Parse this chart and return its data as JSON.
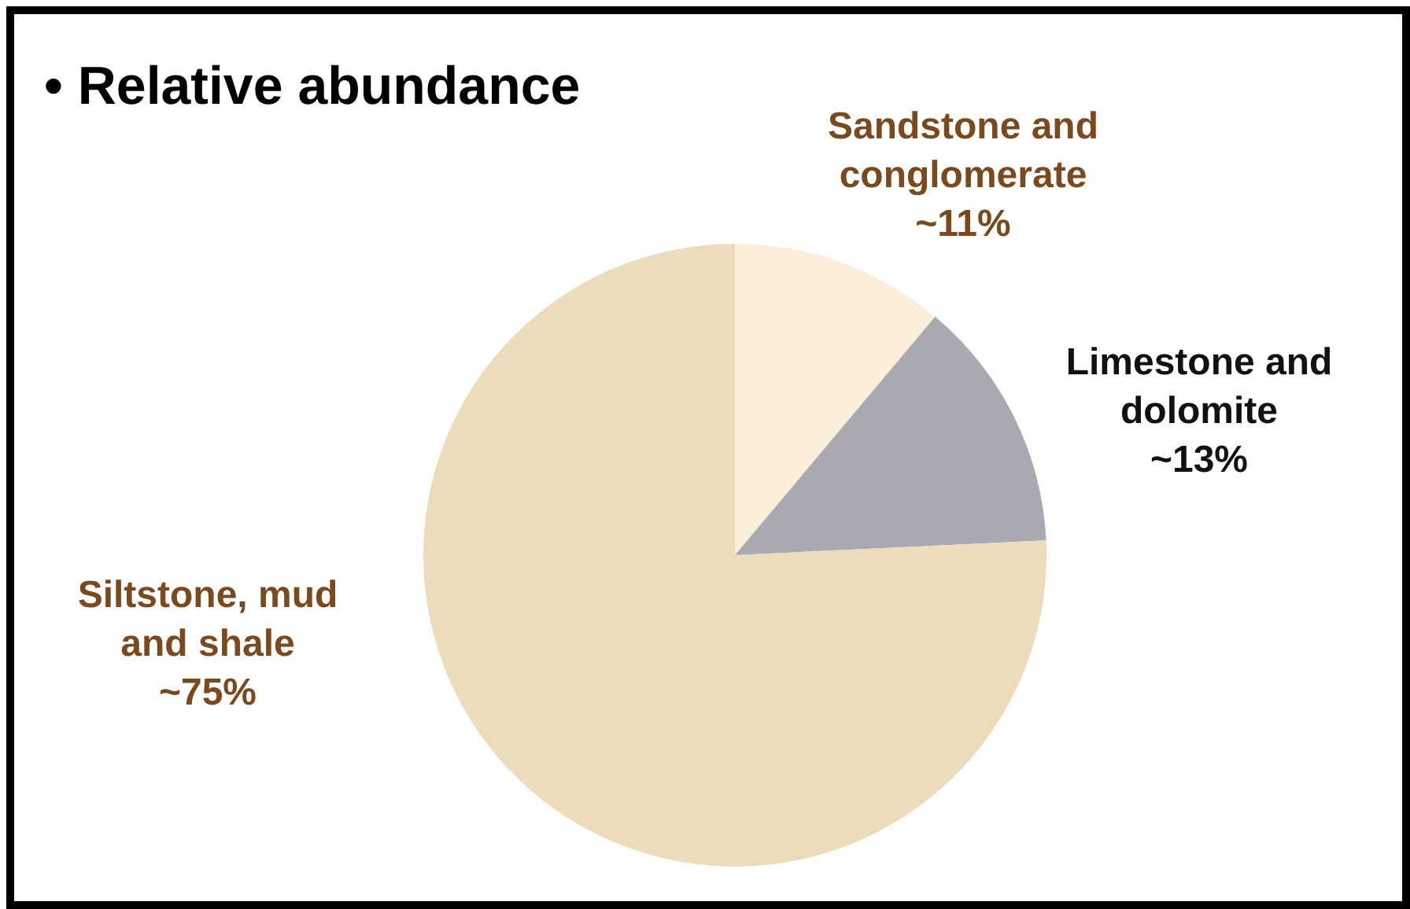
{
  "chart_data": {
    "type": "pie",
    "title": "• Relative abundance",
    "categories": [
      "Sandstone and conglomerate",
      "Limestone and dolomite",
      "Siltstone, mud and shale"
    ],
    "values": [
      11,
      13,
      75
    ],
    "value_labels": [
      "~11%",
      "~13%",
      "~75%"
    ],
    "colors": [
      "#fbeedb",
      "#a9a9b2",
      "#ecdcbc"
    ],
    "legend": false
  }
}
